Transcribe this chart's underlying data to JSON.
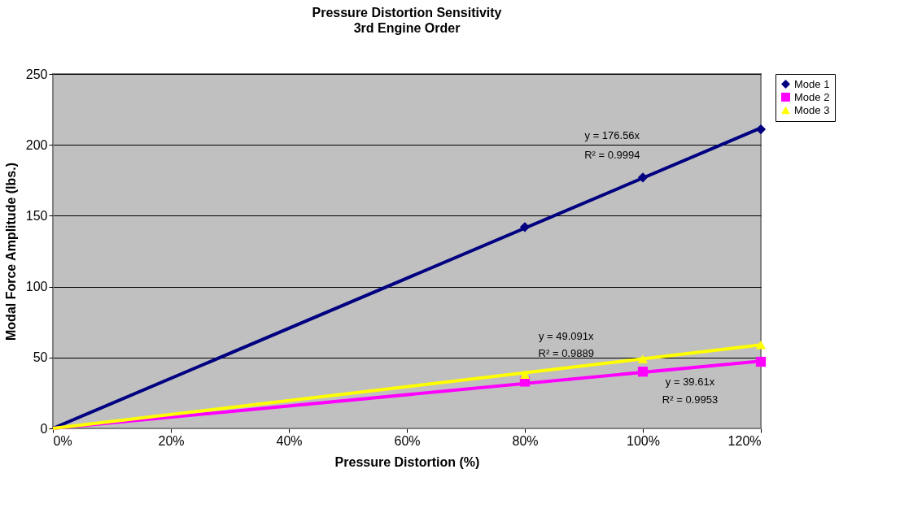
{
  "chart_data": {
    "type": "scatter",
    "title": "Pressure Distortion Sensitivity",
    "subtitle": "3rd Engine Order",
    "xlabel": "Pressure Distortion (%)",
    "ylabel": "Modal Force Amplitude (lbs.)",
    "xlim": [
      0,
      120
    ],
    "xticks": [
      {
        "value": 0,
        "label": "0%"
      },
      {
        "value": 20,
        "label": "20%"
      },
      {
        "value": 40,
        "label": "40%"
      },
      {
        "value": 60,
        "label": "60%"
      },
      {
        "value": 80,
        "label": "80%"
      },
      {
        "value": 100,
        "label": "100%"
      },
      {
        "value": 120,
        "label": "120%"
      }
    ],
    "ylim": [
      0,
      250
    ],
    "yticks": [
      0,
      50,
      100,
      150,
      200,
      250
    ],
    "grid": "y",
    "legend": "right",
    "series": [
      {
        "name": "Mode 1",
        "color": "#000080",
        "marker": "diamond",
        "x": [
          80,
          100,
          120
        ],
        "values": [
          142,
          177,
          211
        ]
      },
      {
        "name": "Mode 2",
        "color": "#ff00ff",
        "marker": "square",
        "x": [
          80,
          100,
          120
        ],
        "values": [
          33,
          40,
          47
        ]
      },
      {
        "name": "Mode 3",
        "color": "#ffff00",
        "marker": "triangle",
        "x": [
          80,
          100,
          120
        ],
        "values": [
          38,
          49,
          59
        ]
      },
      {
        "type": "line",
        "color": "#000080",
        "marker": "none",
        "line_style": "solid",
        "x": [
          0,
          120
        ],
        "values": [
          0,
          211.9
        ]
      },
      {
        "type": "line",
        "color": "#ff00ff",
        "marker": "none",
        "line_style": "solid",
        "x": [
          0,
          120
        ],
        "values": [
          0,
          47.5
        ]
      },
      {
        "type": "line",
        "color": "#ffff00",
        "marker": "none",
        "line_style": "solid",
        "x": [
          0,
          120
        ],
        "values": [
          0,
          58.9
        ]
      }
    ],
    "annotations": [
      "y = 176.56x",
      "R² = 0.9994",
      "y = 49.091x",
      "R² = 0.9889",
      "y = 39.61x",
      "R² = 0.9953"
    ]
  }
}
